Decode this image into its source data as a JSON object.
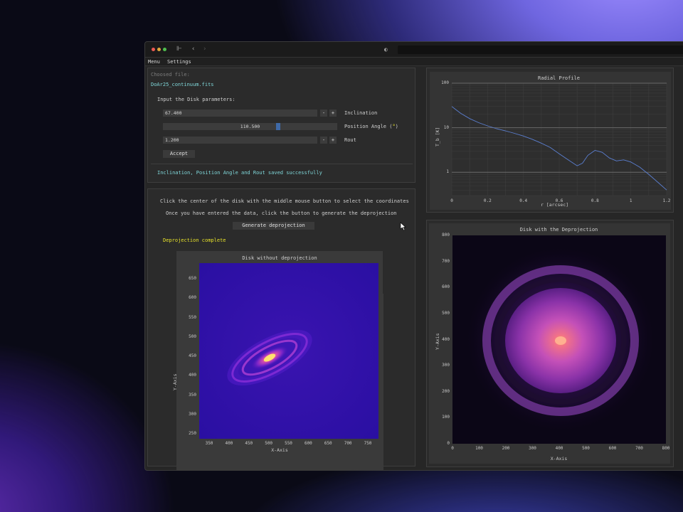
{
  "window": {
    "menu": [
      "Menu",
      "Settings"
    ]
  },
  "file_panel": {
    "choosed_label": "Choosed file:",
    "filename": "DoAr25_continuum.fits",
    "params_label": "Input the Disk parameters:",
    "inclination": {
      "value": "67.400",
      "label": "Inclination"
    },
    "position_angle": {
      "value": "110.500",
      "label_prefix": "Position Angle (",
      "label_symbol": "°",
      "label_suffix": ")",
      "fraction": 0.65
    },
    "rout": {
      "value": "1.200",
      "label": "Rout"
    },
    "accept": "Accept",
    "status": "Inclination, Position Angle and Rout saved successfully"
  },
  "deproj_panel": {
    "instruction1": "Click the center of the disk with the middle mouse button to select the coordinates",
    "instruction2": "Once you have entered the data, click the button to generate the deprojection",
    "button": "Generate deprojection",
    "status": "Deprojection complete",
    "status_color": "#e6e12a"
  },
  "disk_plot": {
    "title": "Disk without deprojection",
    "xlabel": "X-Axis",
    "ylabel": "Y-Axis",
    "xticks": [
      "350",
      "400",
      "450",
      "500",
      "550",
      "600",
      "650",
      "700",
      "750"
    ],
    "yticks": [
      "650",
      "600",
      "550",
      "500",
      "450",
      "400",
      "350",
      "300",
      "250"
    ]
  },
  "deproj_plot": {
    "title": "Disk with the Deprojection",
    "xlabel": "X-Axis",
    "ylabel": "Y-Axis",
    "xticks": [
      "0",
      "100",
      "200",
      "300",
      "400",
      "500",
      "600",
      "700",
      "800"
    ],
    "yticks": [
      "800",
      "700",
      "600",
      "500",
      "400",
      "300",
      "200",
      "100",
      "0"
    ]
  },
  "chart_data": {
    "type": "line",
    "title": "Radial Profile",
    "xlabel": "r [arcsec]",
    "ylabel": "T_b [K]",
    "xlim": [
      0,
      1.2
    ],
    "ylim": [
      0.3,
      100
    ],
    "yscale": "log",
    "xticks": [
      "0",
      "0.2",
      "0.4",
      "0.6",
      "0.8",
      "1",
      "1.2"
    ],
    "yticks": [
      "100",
      "10",
      "1"
    ],
    "line_color": "#5b7fd1",
    "x": [
      0.0,
      0.02,
      0.05,
      0.1,
      0.15,
      0.2,
      0.25,
      0.3,
      0.35,
      0.4,
      0.45,
      0.5,
      0.55,
      0.6,
      0.65,
      0.7,
      0.73,
      0.76,
      0.8,
      0.84,
      0.88,
      0.92,
      0.96,
      1.0,
      1.05,
      1.1,
      1.15,
      1.2
    ],
    "y": [
      30,
      26,
      21,
      16,
      13,
      11,
      9.5,
      8.5,
      7.5,
      6.5,
      5.5,
      4.5,
      3.6,
      2.6,
      1.9,
      1.4,
      1.6,
      2.4,
      3.1,
      2.8,
      2.1,
      1.8,
      1.9,
      1.7,
      1.3,
      0.9,
      0.6,
      0.4
    ]
  }
}
